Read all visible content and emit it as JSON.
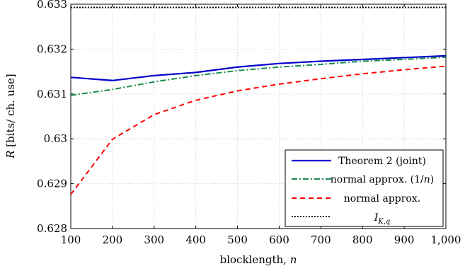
{
  "chart_data": {
    "type": "line",
    "xlabel": "blocklength, n",
    "ylabel": "R [bits/ ch. use]",
    "xlim": [
      100,
      1000
    ],
    "ylim": [
      0.628,
      0.633
    ],
    "xticks": [
      100,
      200,
      300,
      400,
      500,
      600,
      700,
      800,
      900,
      1000
    ],
    "xtick_labels": [
      "100",
      "200",
      "300",
      "400",
      "500",
      "600",
      "700",
      "800",
      "900",
      "1,000"
    ],
    "yticks": [
      0.628,
      0.629,
      0.63,
      0.631,
      0.632,
      0.633
    ],
    "ytick_labels": [
      "0.628",
      "0.629",
      "0.63",
      "0.631",
      "0.632",
      "0.633"
    ],
    "grid": true,
    "legend_position": "bottom-right",
    "x": [
      100,
      200,
      300,
      400,
      500,
      600,
      700,
      800,
      900,
      1000
    ],
    "series": [
      {
        "name": "Theorem 2 (joint)",
        "color": "#0000cc",
        "style": "solid",
        "values": [
          0.63137,
          0.6313,
          0.63141,
          0.63148,
          0.6316,
          0.63168,
          0.63173,
          0.63177,
          0.63181,
          0.63185
        ]
      },
      {
        "name": "normal approx. (1/n)",
        "color": "#1a8a4a",
        "style": "dashdot",
        "values": [
          0.63097,
          0.6311,
          0.63127,
          0.63141,
          0.63152,
          0.6316,
          0.63166,
          0.63173,
          0.63177,
          0.63182
        ]
      },
      {
        "name": "normal approx.",
        "color": "#ff0000",
        "style": "dashed",
        "values": [
          0.62876,
          0.62999,
          0.63054,
          0.63086,
          0.63107,
          0.63122,
          0.63134,
          0.63145,
          0.63154,
          0.63162
        ]
      },
      {
        "name": "I_{K,q}",
        "color": "#000000",
        "style": "dotted",
        "values": [
          0.63293,
          0.63293,
          0.63293,
          0.63293,
          0.63293,
          0.63293,
          0.63293,
          0.63293,
          0.63293,
          0.63293
        ]
      }
    ]
  }
}
